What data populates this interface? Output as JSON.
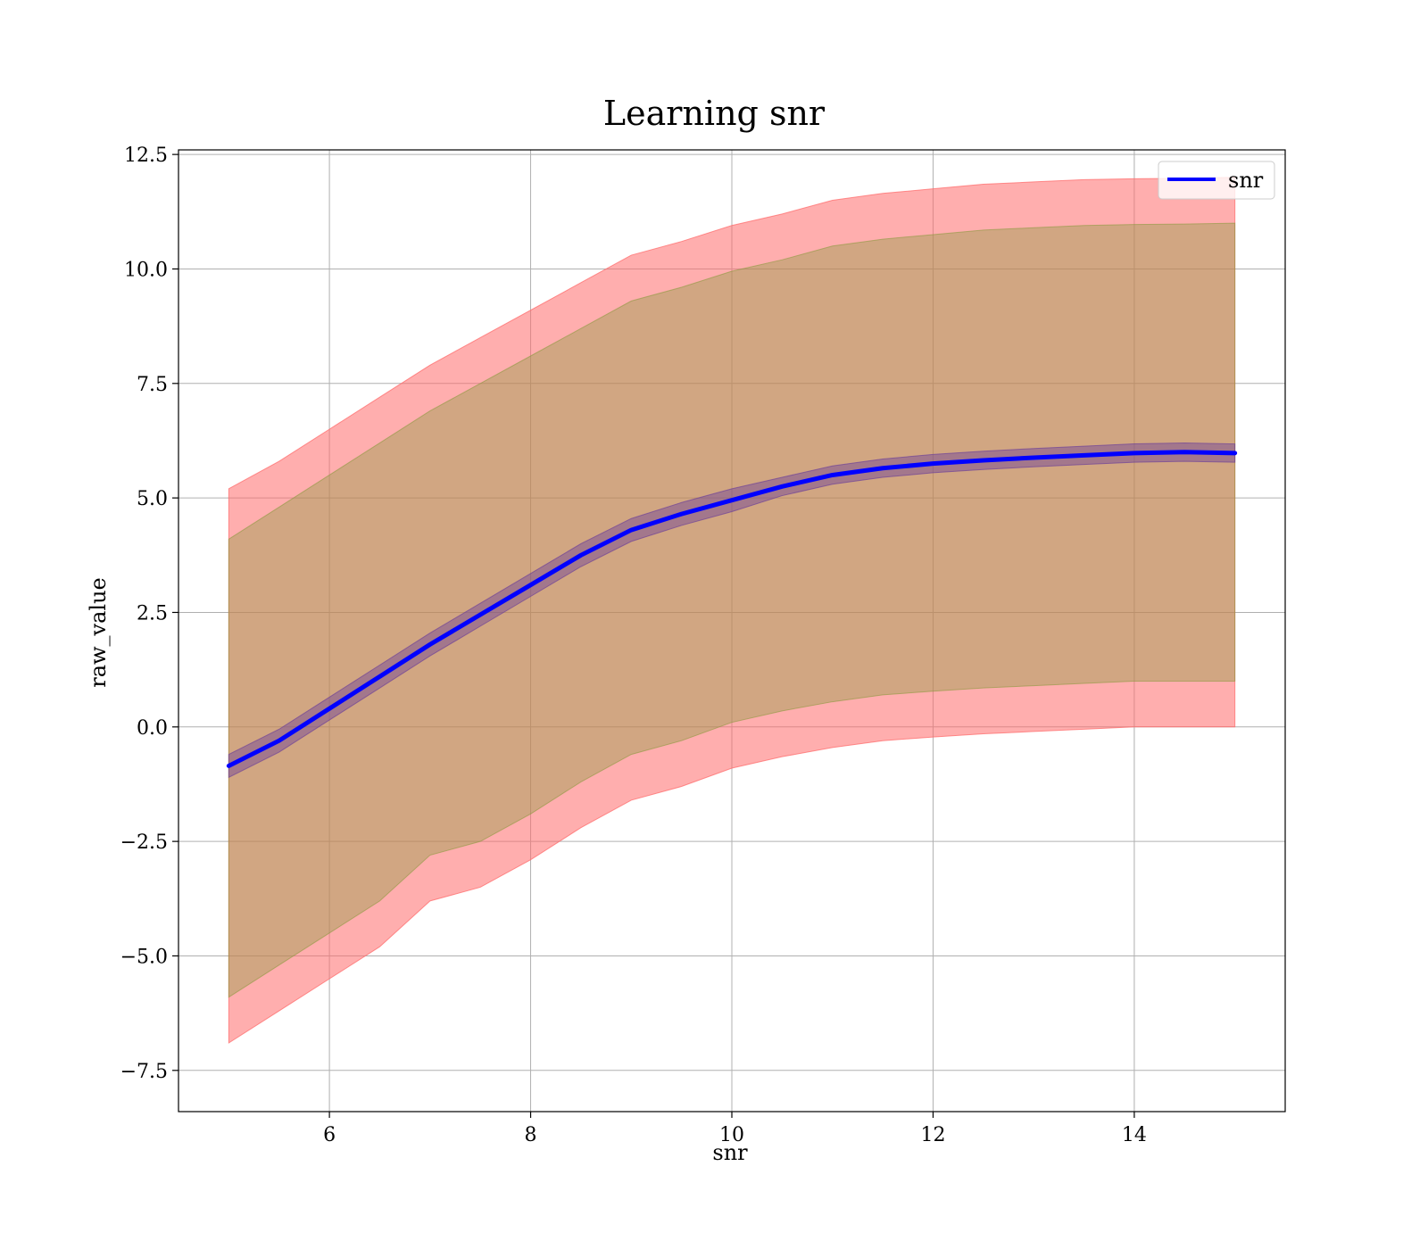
{
  "chart_data": {
    "type": "line",
    "title": "Learning snr",
    "xlabel": "snr",
    "ylabel": "raw_value",
    "xlim": [
      4.5,
      15.5
    ],
    "ylim": [
      -8.4,
      12.6
    ],
    "xticks": [
      6,
      8,
      10,
      12,
      14
    ],
    "xtick_labels": [
      "6",
      "8",
      "10",
      "12",
      "14"
    ],
    "yticks": [
      -7.5,
      -5.0,
      -2.5,
      0.0,
      2.5,
      5.0,
      7.5,
      10.0,
      12.5
    ],
    "ytick_labels": [
      "−7.5",
      "−5.0",
      "−2.5",
      "0.0",
      "2.5",
      "5.0",
      "7.5",
      "10.0",
      "12.5"
    ],
    "grid": true,
    "legend_position": "top-right",
    "x": [
      5,
      5.5,
      6,
      6.5,
      7,
      7.5,
      8,
      8.5,
      9,
      9.5,
      10,
      10.5,
      11,
      11.5,
      12,
      12.5,
      13,
      13.5,
      14,
      14.5,
      15
    ],
    "series": [
      {
        "name": "snr",
        "color": "#0000ff",
        "values": [
          -0.85,
          -0.3,
          0.4,
          1.1,
          1.8,
          2.45,
          3.1,
          3.75,
          4.3,
          4.65,
          4.95,
          5.25,
          5.5,
          5.65,
          5.75,
          5.82,
          5.88,
          5.93,
          5.98,
          6.0,
          5.98
        ]
      }
    ],
    "bands": [
      {
        "color": "#ff6b6b",
        "opacity": 0.55,
        "upper": [
          5.2,
          5.8,
          6.5,
          7.2,
          7.9,
          8.5,
          9.1,
          9.7,
          10.3,
          10.6,
          10.95,
          11.2,
          11.5,
          11.65,
          11.75,
          11.85,
          11.9,
          11.95,
          11.97,
          11.98,
          12.0
        ],
        "lower": [
          -6.9,
          -6.2,
          -5.5,
          -4.8,
          -3.8,
          -3.5,
          -2.9,
          -2.2,
          -1.6,
          -1.3,
          -0.9,
          -0.65,
          -0.45,
          -0.3,
          -0.22,
          -0.15,
          -0.1,
          -0.05,
          0.0,
          0.0,
          0.0
        ]
      },
      {
        "color": "#8c9a40",
        "opacity": 0.4,
        "upper": [
          4.1,
          4.8,
          5.5,
          6.2,
          6.9,
          7.5,
          8.1,
          8.7,
          9.3,
          9.6,
          9.95,
          10.2,
          10.5,
          10.65,
          10.75,
          10.85,
          10.9,
          10.95,
          10.97,
          10.98,
          11.0
        ],
        "lower": [
          -5.9,
          -5.2,
          -4.5,
          -3.8,
          -2.8,
          -2.5,
          -1.9,
          -1.2,
          -0.6,
          -0.3,
          0.1,
          0.35,
          0.55,
          0.7,
          0.78,
          0.85,
          0.9,
          0.95,
          1.0,
          1.0,
          1.0
        ]
      },
      {
        "color": "#6a3d9a",
        "opacity": 0.45,
        "upper": [
          -0.6,
          -0.05,
          0.65,
          1.35,
          2.05,
          2.7,
          3.35,
          4.0,
          4.55,
          4.9,
          5.2,
          5.45,
          5.7,
          5.85,
          5.95,
          6.02,
          6.08,
          6.13,
          6.18,
          6.2,
          6.18
        ],
        "lower": [
          -1.1,
          -0.55,
          0.15,
          0.85,
          1.55,
          2.2,
          2.85,
          3.5,
          4.05,
          4.4,
          4.7,
          5.05,
          5.3,
          5.45,
          5.55,
          5.62,
          5.68,
          5.73,
          5.78,
          5.8,
          5.78
        ]
      }
    ]
  }
}
